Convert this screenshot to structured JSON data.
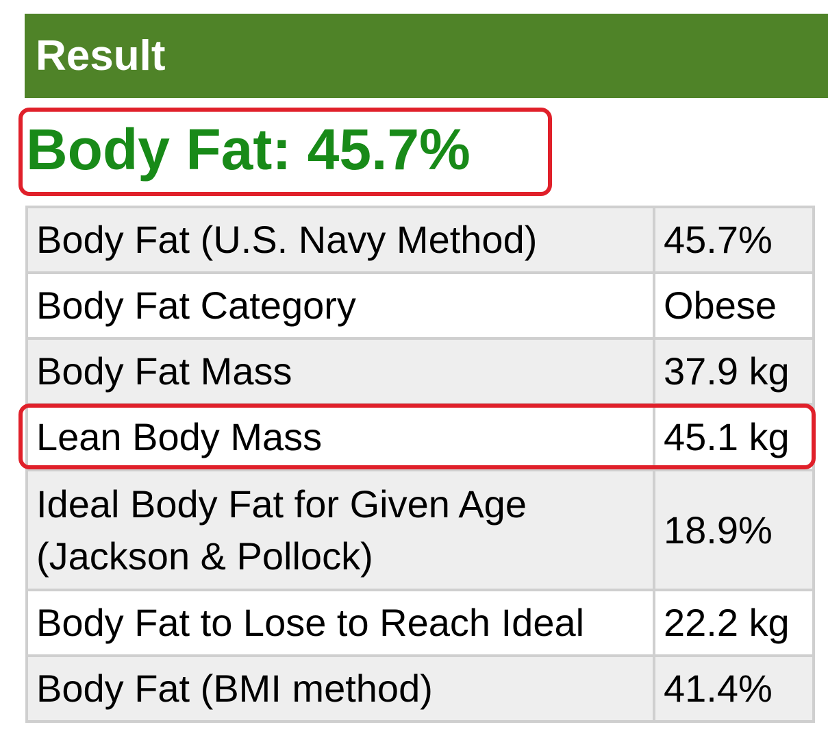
{
  "header": {
    "title": "Result"
  },
  "summary": "Body Fat: 45.7%",
  "table": {
    "rows": [
      [
        "Body Fat (U.S. Navy Method)",
        "45.7%"
      ],
      [
        "Body Fat Category",
        "Obese"
      ],
      [
        "Body Fat Mass",
        "37.9 kg"
      ],
      [
        "Lean Body Mass",
        "45.1 kg"
      ],
      [
        "Ideal Body Fat for Given Age (Jackson & Pollock)",
        "18.9%"
      ],
      [
        "Body Fat to Lose to Reach Ideal",
        "22.2 kg"
      ],
      [
        "Body Fat (BMI method)",
        "41.4%"
      ]
    ]
  }
}
